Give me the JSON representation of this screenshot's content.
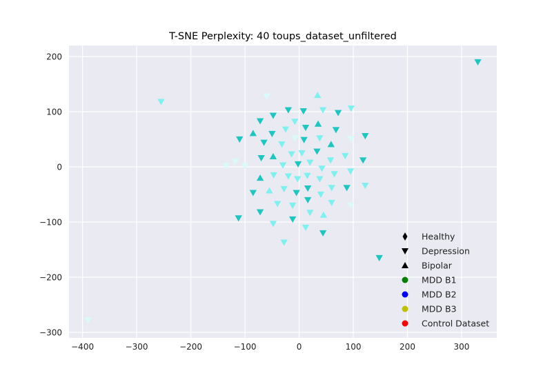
{
  "chart_data": {
    "type": "scatter",
    "title": "T-SNE Perplexity: 40 toups_dataset_unfiltered",
    "xlabel": "",
    "ylabel": "",
    "xlim": [
      -425,
      365
    ],
    "ylim": [
      -310,
      220
    ],
    "xticks": [
      -400,
      -300,
      -200,
      -100,
      0,
      100,
      200,
      300
    ],
    "yticks": [
      -300,
      -200,
      -100,
      0,
      100,
      200
    ],
    "xtick_labels": [
      "−400",
      "−300",
      "−200",
      "−100",
      "0",
      "100",
      "200",
      "300"
    ],
    "ytick_labels": [
      "−300",
      "−200",
      "−100",
      "0",
      "100",
      "200"
    ],
    "grid": true,
    "background": "#EAEAF2",
    "legend": {
      "location": "lower-right",
      "entries": [
        {
          "label": "Healthy",
          "marker": "diamond",
          "color": "#000000"
        },
        {
          "label": "Depression",
          "marker": "triangle-down",
          "color": "#000000"
        },
        {
          "label": "Bipolar",
          "marker": "triangle-up",
          "color": "#000000"
        },
        {
          "label": "MDD B1",
          "marker": "circle",
          "color": "#007F00"
        },
        {
          "label": "MDD B2",
          "marker": "circle",
          "color": "#0000FF"
        },
        {
          "label": "MDD B3",
          "marker": "circle",
          "color": "#BFBF00"
        },
        {
          "label": "Control Dataset",
          "marker": "circle",
          "color": "#FF0000"
        }
      ]
    },
    "colors": {
      "dark": "#1DC6C0",
      "light": "#7FF0F0",
      "pale": "#D9FAFA"
    },
    "points": [
      {
        "x": 330,
        "y": 190,
        "m": "down",
        "c": "dark"
      },
      {
        "x": -255,
        "y": 118,
        "m": "down",
        "c": "light"
      },
      {
        "x": -390,
        "y": -278,
        "m": "down",
        "c": "pale"
      },
      {
        "x": 148,
        "y": -165,
        "m": "down",
        "c": "dark"
      },
      {
        "x": 44,
        "y": -120,
        "m": "down",
        "c": "dark"
      },
      {
        "x": -112,
        "y": -93,
        "m": "down",
        "c": "dark"
      },
      {
        "x": -60,
        "y": 128,
        "m": "down",
        "c": "pale"
      },
      {
        "x": 34,
        "y": 130,
        "m": "up",
        "c": "light"
      },
      {
        "x": 96,
        "y": 106,
        "m": "down",
        "c": "light"
      },
      {
        "x": -20,
        "y": 103,
        "m": "down",
        "c": "dark"
      },
      {
        "x": 8,
        "y": 101,
        "m": "down",
        "c": "dark"
      },
      {
        "x": 44,
        "y": 103,
        "m": "down",
        "c": "light"
      },
      {
        "x": 72,
        "y": 98,
        "m": "down",
        "c": "dark"
      },
      {
        "x": -48,
        "y": 93,
        "m": "down",
        "c": "dark"
      },
      {
        "x": -72,
        "y": 83,
        "m": "down",
        "c": "dark"
      },
      {
        "x": -8,
        "y": 82,
        "m": "down",
        "c": "light"
      },
      {
        "x": 35,
        "y": 78,
        "m": "up",
        "c": "dark"
      },
      {
        "x": 12,
        "y": 71,
        "m": "down",
        "c": "dark"
      },
      {
        "x": -25,
        "y": 68,
        "m": "down",
        "c": "light"
      },
      {
        "x": 68,
        "y": 67,
        "m": "down",
        "c": "dark"
      },
      {
        "x": -85,
        "y": 61,
        "m": "up",
        "c": "dark"
      },
      {
        "x": -50,
        "y": 60,
        "m": "down",
        "c": "dark"
      },
      {
        "x": 122,
        "y": 56,
        "m": "down",
        "c": "dark"
      },
      {
        "x": -110,
        "y": 50,
        "m": "down",
        "c": "dark"
      },
      {
        "x": 38,
        "y": 52,
        "m": "down",
        "c": "light"
      },
      {
        "x": 9,
        "y": 49,
        "m": "down",
        "c": "dark"
      },
      {
        "x": -8,
        "y": 52,
        "m": "down",
        "c": "pale"
      },
      {
        "x": 96,
        "y": 51,
        "m": "down",
        "c": "pale"
      },
      {
        "x": -65,
        "y": 44,
        "m": "down",
        "c": "dark"
      },
      {
        "x": -32,
        "y": 41,
        "m": "down",
        "c": "light"
      },
      {
        "x": 59,
        "y": 41,
        "m": "up",
        "c": "dark"
      },
      {
        "x": 33,
        "y": 28,
        "m": "down",
        "c": "dark"
      },
      {
        "x": 5,
        "y": 25,
        "m": "down",
        "c": "light"
      },
      {
        "x": -14,
        "y": 23,
        "m": "down",
        "c": "light"
      },
      {
        "x": 85,
        "y": 20,
        "m": "down",
        "c": "light"
      },
      {
        "x": -48,
        "y": 19,
        "m": "up",
        "c": "dark"
      },
      {
        "x": -70,
        "y": 16,
        "m": "down",
        "c": "dark"
      },
      {
        "x": 58,
        "y": 12,
        "m": "down",
        "c": "light"
      },
      {
        "x": 118,
        "y": 12,
        "m": "down",
        "c": "dark"
      },
      {
        "x": -118,
        "y": 10,
        "m": "down",
        "c": "pale"
      },
      {
        "x": 20,
        "y": 8,
        "m": "down",
        "c": "light"
      },
      {
        "x": -2,
        "y": 5,
        "m": "down",
        "c": "dark"
      },
      {
        "x": -30,
        "y": 3,
        "m": "down",
        "c": "light"
      },
      {
        "x": -135,
        "y": 2,
        "m": "down",
        "c": "pale"
      },
      {
        "x": -100,
        "y": 2,
        "m": "down",
        "c": "pale"
      },
      {
        "x": 42,
        "y": -3,
        "m": "down",
        "c": "light"
      },
      {
        "x": 95,
        "y": -8,
        "m": "down",
        "c": "light"
      },
      {
        "x": 65,
        "y": -13,
        "m": "down",
        "c": "light"
      },
      {
        "x": -47,
        "y": -15,
        "m": "down",
        "c": "light"
      },
      {
        "x": -20,
        "y": -17,
        "m": "down",
        "c": "light"
      },
      {
        "x": 15,
        "y": -16,
        "m": "down",
        "c": "light"
      },
      {
        "x": -72,
        "y": -20,
        "m": "up",
        "c": "dark"
      },
      {
        "x": -3,
        "y": -22,
        "m": "down",
        "c": "light"
      },
      {
        "x": 38,
        "y": -22,
        "m": "down",
        "c": "light"
      },
      {
        "x": 122,
        "y": -34,
        "m": "down",
        "c": "light"
      },
      {
        "x": 88,
        "y": -38,
        "m": "down",
        "c": "dark"
      },
      {
        "x": 16,
        "y": -39,
        "m": "down",
        "c": "dark"
      },
      {
        "x": 60,
        "y": -38,
        "m": "down",
        "c": "light"
      },
      {
        "x": -28,
        "y": -40,
        "m": "down",
        "c": "light"
      },
      {
        "x": -55,
        "y": -43,
        "m": "up",
        "c": "light"
      },
      {
        "x": -85,
        "y": -47,
        "m": "down",
        "c": "dark"
      },
      {
        "x": -5,
        "y": -47,
        "m": "down",
        "c": "dark"
      },
      {
        "x": 40,
        "y": -50,
        "m": "down",
        "c": "light"
      },
      {
        "x": 16,
        "y": -60,
        "m": "down",
        "c": "dark"
      },
      {
        "x": 60,
        "y": -65,
        "m": "down",
        "c": "light"
      },
      {
        "x": -40,
        "y": -67,
        "m": "down",
        "c": "light"
      },
      {
        "x": -12,
        "y": -70,
        "m": "down",
        "c": "light"
      },
      {
        "x": 95,
        "y": -70,
        "m": "down",
        "c": "pale"
      },
      {
        "x": -72,
        "y": -82,
        "m": "down",
        "c": "dark"
      },
      {
        "x": 20,
        "y": -83,
        "m": "down",
        "c": "light"
      },
      {
        "x": 45,
        "y": -87,
        "m": "up",
        "c": "light"
      },
      {
        "x": -12,
        "y": -95,
        "m": "down",
        "c": "dark"
      },
      {
        "x": -48,
        "y": -103,
        "m": "down",
        "c": "light"
      },
      {
        "x": 12,
        "y": -110,
        "m": "down",
        "c": "light"
      },
      {
        "x": -28,
        "y": -137,
        "m": "down",
        "c": "light"
      }
    ]
  }
}
